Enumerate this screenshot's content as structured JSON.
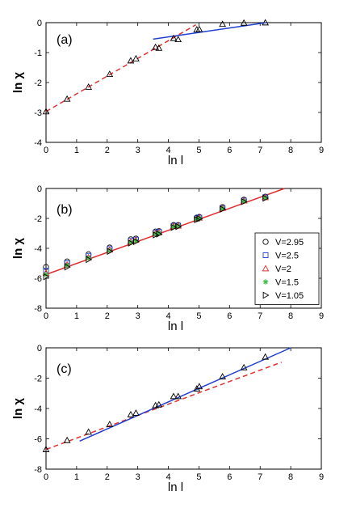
{
  "chart_data": [
    {
      "type": "scatter",
      "panel_label": "(a)",
      "xlabel": "ln l",
      "ylabel": "ln χ",
      "xlim": [
        0,
        9
      ],
      "ylim": [
        -4,
        0
      ],
      "xticks": [
        "0",
        "1",
        "2",
        "3",
        "4",
        "5",
        "6",
        "7",
        "8",
        "9"
      ],
      "yticks": [
        "-4",
        "-3",
        "-2",
        "-1",
        "0"
      ],
      "grid": false,
      "markers": [
        {
          "marker": "triangle",
          "color": "#000000",
          "x": [
            0.0,
            0.69,
            1.39,
            2.08,
            2.77,
            2.94,
            3.58,
            3.69,
            4.17,
            4.32,
            4.93,
            5.01,
            5.77,
            6.47,
            7.17
          ],
          "y": [
            -2.97,
            -2.55,
            -2.15,
            -1.72,
            -1.27,
            -1.2,
            -0.82,
            -0.85,
            -0.52,
            -0.56,
            -0.23,
            -0.22,
            -0.05,
            -0.01,
            0.0
          ]
        }
      ],
      "lines": [
        {
          "style": "dashed",
          "color": "#e03030",
          "x": [
            0,
            4.9
          ],
          "y": [
            -2.97,
            -0.07
          ]
        },
        {
          "style": "solid",
          "color": "#2040d0",
          "x": [
            3.5,
            7.2
          ],
          "y": [
            -0.55,
            0.0
          ]
        }
      ]
    },
    {
      "type": "scatter",
      "panel_label": "(b)",
      "xlabel": "ln l",
      "ylabel": "ln χ",
      "xlim": [
        0,
        9
      ],
      "ylim": [
        -8,
        0
      ],
      "xticks": [
        "0",
        "1",
        "2",
        "3",
        "4",
        "5",
        "6",
        "7",
        "8",
        "9"
      ],
      "yticks": [
        "-8",
        "-6",
        "-4",
        "-2",
        "0"
      ],
      "grid": false,
      "legend_position": "right",
      "series": [
        {
          "name": "V=2.95",
          "marker": "circle",
          "color": "#000000",
          "x": [
            0.0,
            0.69,
            1.39,
            2.08,
            2.77,
            2.94,
            3.58,
            3.69,
            4.17,
            4.32,
            4.93,
            5.01,
            5.77,
            6.47,
            7.17
          ],
          "y": [
            -5.25,
            -4.88,
            -4.4,
            -3.95,
            -3.4,
            -3.35,
            -2.88,
            -2.85,
            -2.45,
            -2.45,
            -1.95,
            -1.9,
            -1.25,
            -0.75,
            -0.55
          ]
        },
        {
          "name": "V=2.5",
          "marker": "square",
          "color": "#2040d0",
          "x": [
            0.0,
            0.69,
            1.39,
            2.08,
            2.77,
            2.94,
            3.58,
            3.69,
            4.17,
            4.32,
            4.93,
            5.01,
            5.77,
            6.47,
            7.17
          ],
          "y": [
            -5.5,
            -5.0,
            -4.5,
            -4.05,
            -3.5,
            -3.42,
            -2.95,
            -2.9,
            -2.5,
            -2.48,
            -2.0,
            -1.95,
            -1.3,
            -0.8,
            -0.58
          ]
        },
        {
          "name": "V=2",
          "marker": "triangle",
          "color": "#e03030",
          "x": [
            0.0,
            0.69,
            1.39,
            2.08,
            2.77,
            2.94,
            3.58,
            3.69,
            4.17,
            4.32,
            4.93,
            5.01,
            5.77,
            6.47,
            7.17
          ],
          "y": [
            -5.65,
            -5.1,
            -4.6,
            -4.1,
            -3.55,
            -3.45,
            -3.0,
            -2.95,
            -2.52,
            -2.5,
            -2.02,
            -1.97,
            -1.32,
            -0.82,
            -0.6
          ]
        },
        {
          "name": "V=1.5",
          "marker": "star",
          "color": "#40c040",
          "x": [
            0.0,
            0.69,
            1.39,
            2.08,
            2.77,
            2.94,
            3.58,
            3.69,
            4.17,
            4.32,
            4.93,
            5.01,
            5.77,
            6.47,
            7.17
          ],
          "y": [
            -5.75,
            -5.15,
            -4.65,
            -4.15,
            -3.6,
            -3.5,
            -3.05,
            -3.0,
            -2.55,
            -2.52,
            -2.05,
            -2.0,
            -1.35,
            -0.85,
            -0.62
          ]
        },
        {
          "name": "V=1.05",
          "marker": "triangle-right",
          "color": "#000000",
          "x": [
            0.0,
            0.69,
            1.39,
            2.08,
            2.77,
            2.94,
            3.58,
            3.69,
            4.17,
            4.32,
            4.93,
            5.01,
            5.77,
            6.47,
            7.17
          ],
          "y": [
            -5.9,
            -5.25,
            -4.75,
            -4.2,
            -3.65,
            -3.55,
            -3.1,
            -3.05,
            -2.6,
            -2.55,
            -2.08,
            -2.02,
            -1.38,
            -0.88,
            -0.65
          ]
        }
      ],
      "lines": [
        {
          "style": "solid",
          "color": "#e03030",
          "x": [
            0,
            7.8
          ],
          "y": [
            -5.75,
            0.0
          ]
        }
      ]
    },
    {
      "type": "scatter",
      "panel_label": "(c)",
      "xlabel": "ln l",
      "ylabel": "ln χ",
      "xlim": [
        0,
        9
      ],
      "ylim": [
        -8,
        0
      ],
      "xticks": [
        "0",
        "1",
        "2",
        "3",
        "4",
        "5",
        "6",
        "7",
        "8",
        "9"
      ],
      "yticks": [
        "-8",
        "-6",
        "-4",
        "-2",
        "0"
      ],
      "grid": false,
      "markers": [
        {
          "marker": "triangle",
          "color": "#000000",
          "x": [
            0.0,
            0.69,
            1.39,
            2.08,
            2.77,
            2.94,
            3.58,
            3.69,
            4.17,
            4.32,
            4.93,
            5.01,
            5.77,
            6.47,
            7.17
          ],
          "y": [
            -6.7,
            -6.1,
            -5.55,
            -5.05,
            -4.4,
            -4.3,
            -3.8,
            -3.75,
            -3.2,
            -3.2,
            -2.7,
            -2.55,
            -1.9,
            -1.3,
            -0.6
          ]
        }
      ],
      "lines": [
        {
          "style": "dashed",
          "color": "#e03030",
          "x": [
            0,
            7.7
          ],
          "y": [
            -6.7,
            -0.95
          ]
        },
        {
          "style": "solid",
          "color": "#2040d0",
          "x": [
            1.1,
            8.0
          ],
          "y": [
            -6.15,
            0.0
          ]
        }
      ]
    }
  ]
}
